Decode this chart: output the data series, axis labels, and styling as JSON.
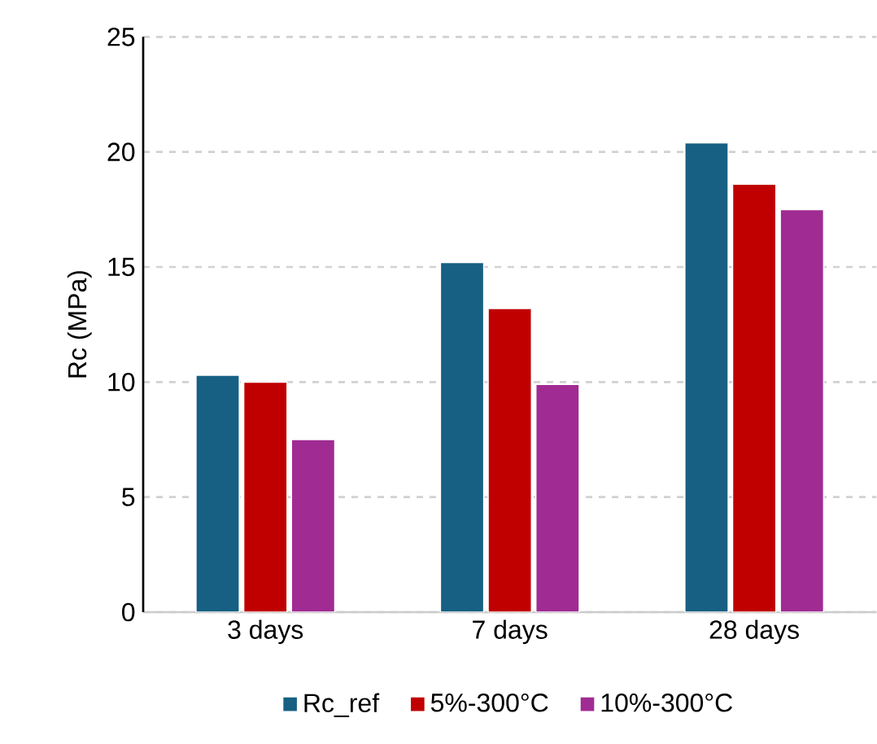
{
  "chart_data": {
    "type": "bar",
    "ylabel": "Rc (MPa)",
    "categories": [
      "3 days",
      "7 days",
      "28 days"
    ],
    "series": [
      {
        "name": "Rc_ref",
        "color": "#176083",
        "values": [
          10.3,
          15.2,
          20.4
        ]
      },
      {
        "name": "5%-300°C",
        "color": "#c00000",
        "values": [
          10.0,
          13.2,
          18.6
        ]
      },
      {
        "name": "10%-300°C",
        "color": "#a02b93",
        "values": [
          7.5,
          9.9,
          17.5
        ]
      }
    ],
    "ylim": [
      0,
      25
    ],
    "yticks": [
      0,
      5,
      10,
      15,
      20,
      25
    ],
    "grid": "y",
    "legend": "bottom"
  }
}
